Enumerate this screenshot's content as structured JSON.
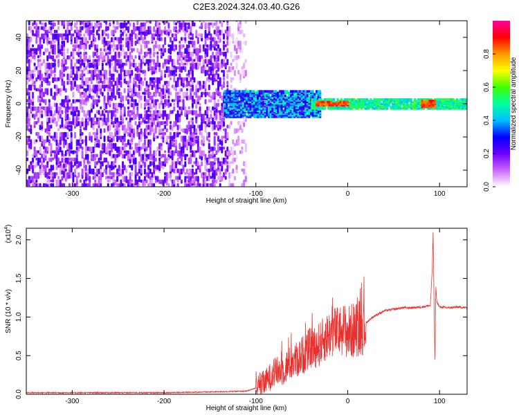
{
  "title": "C2E3.2024.324.03.40.G26",
  "colors": {
    "snr_line": "#e8312f",
    "colorbar": [
      "#ffffff",
      "#cc66ff",
      "#6a00ff",
      "#0000ff",
      "#00c0ff",
      "#00ffa0",
      "#40ff00",
      "#ffff00",
      "#ff9900",
      "#ff0000",
      "#ff00a0"
    ]
  },
  "chart_data": [
    {
      "type": "heatmap",
      "xlabel": "Height of straight line (km)",
      "ylabel": "Frequency (Hz)",
      "xlim": [
        -350,
        130
      ],
      "ylim": [
        -50,
        50
      ],
      "xticks": [
        -300,
        -200,
        -100,
        0,
        100
      ],
      "xtick_labels": [
        "-300",
        "-200",
        "-100",
        "0",
        "100"
      ],
      "yticks": [
        -40,
        -20,
        0,
        20,
        40
      ],
      "ytick_labels": [
        "-40",
        "-20",
        "0",
        "20",
        "40"
      ],
      "colorbar": {
        "label": "Normalized spectral amplitude",
        "range": [
          0,
          1
        ],
        "ticks": [
          0.0,
          0.2,
          0.4,
          0.6,
          0.8
        ],
        "tick_labels": [
          "0.0",
          "0.2",
          "0.4",
          "0.6",
          "0.8"
        ]
      },
      "regions": [
        {
          "x_range": [
            -350,
            -130
          ],
          "freq_range": [
            -50,
            50
          ],
          "amplitude": [
            0.05,
            0.25
          ]
        },
        {
          "x_range": [
            -130,
            -110
          ],
          "freq_range": [
            -50,
            50
          ],
          "amplitude": [
            0.02,
            0.1
          ]
        },
        {
          "x_range": [
            -135,
            -30
          ],
          "freq_center": 0,
          "freq_halfwidth": 8,
          "amplitude": [
            0.2,
            0.5
          ]
        },
        {
          "x_range": [
            -40,
            130
          ],
          "freq_center": 0,
          "freq_halfwidth": 3,
          "amplitude": [
            0.4,
            0.6
          ]
        },
        {
          "x_range": [
            -35,
            0
          ],
          "freq_center": 0,
          "freq_halfwidth": 1,
          "amplitude": [
            0.8,
            0.9
          ]
        },
        {
          "x_range": [
            80,
            95
          ],
          "freq_center": 0,
          "freq_halfwidth": 2,
          "amplitude": [
            0.8,
            0.9
          ]
        }
      ]
    },
    {
      "type": "line",
      "xlabel": "Height of straight line (km)",
      "ylabel": "SNR (10 * v/v)",
      "y_multiplier": "(x10",
      "y_multiplier_exp": "4",
      "y_multiplier_close": ")",
      "xlim": [
        -350,
        130
      ],
      "ylim": [
        0,
        2.15
      ],
      "xticks": [
        -300,
        -200,
        -100,
        0,
        100
      ],
      "xtick_labels": [
        "-300",
        "-200",
        "-100",
        "0",
        "100"
      ],
      "yticks": [
        0.0,
        0.5,
        1.0,
        1.5,
        2.0
      ],
      "ytick_labels": [
        "0.0",
        "0.5",
        "1.0",
        "1.5",
        "2.0"
      ],
      "series": [
        {
          "x": [
            -350,
            -200,
            -150,
            -110,
            -100,
            -95,
            -90,
            -85,
            -80,
            -75,
            -70,
            -65,
            -60,
            -55,
            -50,
            -45,
            -40,
            -35,
            -30,
            -25,
            -20,
            -15,
            -10,
            -5,
            0,
            5,
            10,
            15,
            20,
            25,
            30,
            35,
            40,
            50,
            60,
            70,
            80,
            90,
            92,
            93,
            94,
            95,
            96,
            97,
            100,
            110,
            120,
            130
          ],
          "y": [
            0.02,
            0.02,
            0.03,
            0.04,
            0.08,
            0.12,
            0.15,
            0.22,
            0.28,
            0.3,
            0.32,
            0.38,
            0.42,
            0.45,
            0.5,
            0.55,
            0.6,
            0.62,
            0.65,
            0.72,
            0.78,
            0.82,
            0.8,
            0.85,
            0.8,
            0.82,
            0.86,
            0.88,
            0.92,
            0.98,
            1.02,
            1.05,
            1.08,
            1.1,
            1.12,
            1.12,
            1.13,
            1.15,
            1.6,
            2.1,
            1.2,
            0.45,
            1.4,
            1.2,
            1.13,
            1.12,
            1.13,
            1.12
          ]
        }
      ]
    }
  ]
}
